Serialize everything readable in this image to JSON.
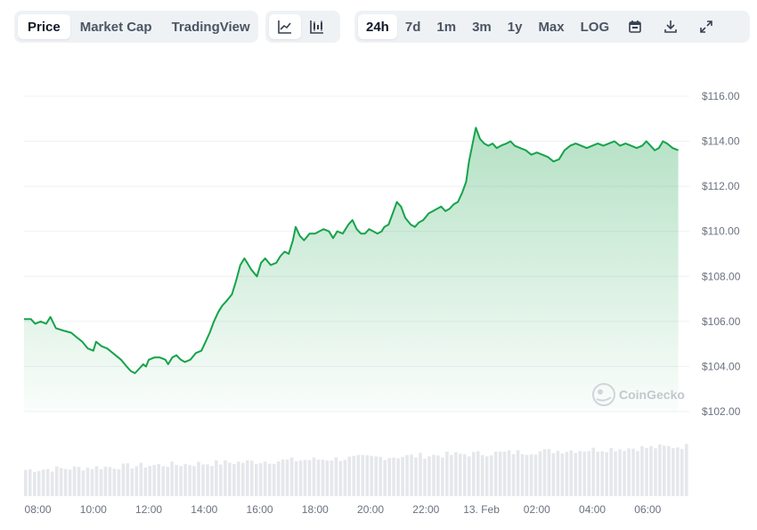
{
  "toolbar": {
    "type_tabs": [
      "Price",
      "Market Cap",
      "TradingView"
    ],
    "chart_icons": [
      "line-chart-icon",
      "candlestick-chart-icon"
    ],
    "range_tabs": [
      "24h",
      "7d",
      "1m",
      "3m",
      "1y",
      "Max",
      "LOG"
    ],
    "tool_icons": [
      "calendar-icon",
      "download-icon",
      "expand-icon"
    ],
    "active_type": "Price",
    "active_chart": "line-chart-icon",
    "active_range": "24h"
  },
  "watermark": "CoinGecko",
  "colors": {
    "line": "#16a34a",
    "volume": "#e5e7eb",
    "grid": "#eef0f3",
    "accent_bg": "#eff2f5"
  },
  "chart_data": {
    "type": "area",
    "title": "",
    "xlabel": "",
    "ylabel": "",
    "x_ticks": [
      "08:00",
      "10:00",
      "12:00",
      "14:00",
      "16:00",
      "18:00",
      "20:00",
      "22:00",
      "13. Feb",
      "02:00",
      "04:00",
      "06:00"
    ],
    "y_ticks": [
      "$102.00",
      "$104.00",
      "$106.00",
      "$108.00",
      "$110.00",
      "$112.00",
      "$114.00",
      "$116.00"
    ],
    "ylim": [
      102,
      116
    ],
    "x_range_hours": [
      0,
      24
    ],
    "x_unit": "hours since 07:30",
    "series": [
      {
        "values": [
          [
            0.0,
            106.1
          ],
          [
            0.25,
            106.1
          ],
          [
            0.4,
            105.9
          ],
          [
            0.6,
            106.0
          ],
          [
            0.8,
            105.9
          ],
          [
            0.95,
            106.2
          ],
          [
            1.15,
            105.7
          ],
          [
            1.4,
            105.6
          ],
          [
            1.7,
            105.5
          ],
          [
            1.9,
            105.3
          ],
          [
            2.1,
            105.1
          ],
          [
            2.3,
            104.8
          ],
          [
            2.5,
            104.7
          ],
          [
            2.6,
            105.1
          ],
          [
            2.8,
            104.9
          ],
          [
            3.0,
            104.8
          ],
          [
            3.3,
            104.5
          ],
          [
            3.5,
            104.3
          ],
          [
            3.7,
            104.0
          ],
          [
            3.85,
            103.8
          ],
          [
            4.0,
            103.7
          ],
          [
            4.15,
            103.9
          ],
          [
            4.3,
            104.1
          ],
          [
            4.4,
            104.0
          ],
          [
            4.5,
            104.3
          ],
          [
            4.7,
            104.4
          ],
          [
            4.9,
            104.4
          ],
          [
            5.1,
            104.3
          ],
          [
            5.2,
            104.1
          ],
          [
            5.35,
            104.4
          ],
          [
            5.5,
            104.5
          ],
          [
            5.65,
            104.3
          ],
          [
            5.8,
            104.2
          ],
          [
            6.0,
            104.3
          ],
          [
            6.2,
            104.6
          ],
          [
            6.4,
            104.7
          ],
          [
            6.55,
            105.1
          ],
          [
            6.7,
            105.5
          ],
          [
            6.85,
            106.0
          ],
          [
            7.0,
            106.4
          ],
          [
            7.15,
            106.7
          ],
          [
            7.3,
            106.9
          ],
          [
            7.5,
            107.2
          ],
          [
            7.65,
            107.8
          ],
          [
            7.8,
            108.5
          ],
          [
            7.95,
            108.8
          ],
          [
            8.05,
            108.6
          ],
          [
            8.2,
            108.3
          ],
          [
            8.4,
            108.0
          ],
          [
            8.55,
            108.6
          ],
          [
            8.7,
            108.8
          ],
          [
            8.9,
            108.5
          ],
          [
            9.1,
            108.6
          ],
          [
            9.25,
            108.9
          ],
          [
            9.4,
            109.1
          ],
          [
            9.55,
            109.0
          ],
          [
            9.7,
            109.6
          ],
          [
            9.8,
            110.2
          ],
          [
            9.95,
            109.8
          ],
          [
            10.1,
            109.6
          ],
          [
            10.3,
            109.9
          ],
          [
            10.5,
            109.9
          ],
          [
            10.65,
            110.0
          ],
          [
            10.8,
            110.1
          ],
          [
            11.0,
            110.0
          ],
          [
            11.15,
            109.7
          ],
          [
            11.3,
            110.0
          ],
          [
            11.5,
            109.9
          ],
          [
            11.7,
            110.3
          ],
          [
            11.85,
            110.5
          ],
          [
            12.0,
            110.1
          ],
          [
            12.15,
            109.9
          ],
          [
            12.3,
            109.9
          ],
          [
            12.45,
            110.1
          ],
          [
            12.6,
            110.0
          ],
          [
            12.75,
            109.9
          ],
          [
            12.9,
            110.0
          ],
          [
            13.0,
            110.2
          ],
          [
            13.15,
            110.3
          ],
          [
            13.3,
            110.8
          ],
          [
            13.45,
            111.3
          ],
          [
            13.6,
            111.1
          ],
          [
            13.75,
            110.6
          ],
          [
            13.95,
            110.3
          ],
          [
            14.1,
            110.2
          ],
          [
            14.25,
            110.4
          ],
          [
            14.4,
            110.5
          ],
          [
            14.6,
            110.8
          ],
          [
            14.75,
            110.9
          ],
          [
            14.9,
            111.0
          ],
          [
            15.05,
            111.1
          ],
          [
            15.2,
            110.9
          ],
          [
            15.35,
            111.0
          ],
          [
            15.5,
            111.2
          ],
          [
            15.65,
            111.3
          ],
          [
            15.8,
            111.7
          ],
          [
            15.95,
            112.2
          ],
          [
            16.05,
            113.1
          ],
          [
            16.2,
            114.0
          ],
          [
            16.3,
            114.6
          ],
          [
            16.45,
            114.1
          ],
          [
            16.6,
            113.9
          ],
          [
            16.75,
            113.8
          ],
          [
            16.9,
            113.9
          ],
          [
            17.05,
            113.7
          ],
          [
            17.2,
            113.8
          ],
          [
            17.4,
            113.9
          ],
          [
            17.55,
            114.0
          ],
          [
            17.7,
            113.8
          ],
          [
            17.9,
            113.7
          ],
          [
            18.1,
            113.6
          ],
          [
            18.3,
            113.4
          ],
          [
            18.5,
            113.5
          ],
          [
            18.7,
            113.4
          ],
          [
            18.9,
            113.3
          ],
          [
            19.1,
            113.1
          ],
          [
            19.3,
            113.2
          ],
          [
            19.5,
            113.6
          ],
          [
            19.7,
            113.8
          ],
          [
            19.9,
            113.9
          ],
          [
            20.1,
            113.8
          ],
          [
            20.3,
            113.7
          ],
          [
            20.5,
            113.8
          ],
          [
            20.7,
            113.9
          ],
          [
            20.9,
            113.8
          ],
          [
            21.1,
            113.9
          ],
          [
            21.3,
            114.0
          ],
          [
            21.5,
            113.8
          ],
          [
            21.7,
            113.9
          ],
          [
            21.9,
            113.8
          ],
          [
            22.1,
            113.7
          ],
          [
            22.3,
            113.8
          ],
          [
            22.45,
            114.0
          ],
          [
            22.6,
            113.8
          ],
          [
            22.75,
            113.6
          ],
          [
            22.9,
            113.7
          ],
          [
            23.05,
            114.0
          ],
          [
            23.2,
            113.9
          ],
          [
            23.4,
            113.7
          ],
          [
            23.6,
            113.6
          ]
        ]
      }
    ],
    "volume": {
      "type": "bar",
      "trend": "rising",
      "start_level": 0.5,
      "end_level": 0.95
    },
    "grid": true,
    "line_color": "#16a34a",
    "fill": "gradient-green"
  }
}
